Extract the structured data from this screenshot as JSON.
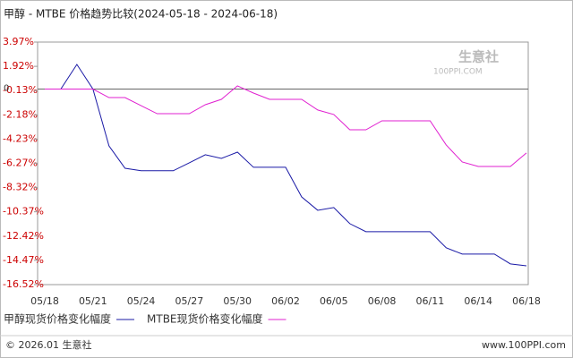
{
  "chart_data": {
    "type": "line",
    "title": "甲醇 - MTBE 价格趋势比较(2024-05-18 - 2024-06-18)",
    "categories": [
      "05/18",
      null,
      null,
      "05/21",
      null,
      null,
      "05/24",
      null,
      null,
      "05/27",
      null,
      null,
      "05/30",
      null,
      null,
      "06/02",
      null,
      null,
      "06/05",
      null,
      null,
      "06/08",
      null,
      null,
      "06/11",
      null,
      null,
      "06/14",
      null,
      null,
      "06/18"
    ],
    "series": [
      {
        "name": "甲醇现货价格变化幅度",
        "color": "#1a1aa6",
        "values": [
          0,
          0,
          2.08,
          0,
          -4.8,
          -6.69,
          -6.9,
          -6.9,
          -6.9,
          -6.23,
          -5.55,
          -5.86,
          -5.33,
          -6.61,
          -6.61,
          -6.61,
          -9.11,
          -10.24,
          -10.01,
          -11.37,
          -12.05,
          -12.05,
          -12.05,
          -12.05,
          -12.05,
          -13.41,
          -13.94,
          -13.94,
          -13.94,
          -14.77,
          -14.93
        ]
      },
      {
        "name": "MTBE现货价格变化幅度",
        "color": "#e020d0",
        "values": [
          0,
          0,
          0,
          0,
          -0.72,
          -0.72,
          -1.4,
          -2.08,
          -2.08,
          -2.08,
          -1.32,
          -0.87,
          0.27,
          -0.34,
          -0.87,
          -0.87,
          -0.87,
          -1.77,
          -2.15,
          -3.44,
          -3.44,
          -2.68,
          -2.68,
          -2.68,
          -2.68,
          -4.72,
          -6.16,
          -6.54,
          -6.54,
          -6.54,
          -5.4
        ]
      }
    ],
    "ylim": [
      -16.52,
      3.97
    ],
    "yticks": [
      {
        "value": 3.97,
        "label": "3.97%"
      },
      {
        "value": 1.92,
        "label": "1.92%"
      },
      {
        "value": -0.13,
        "label": "-0.13%"
      },
      {
        "value": -2.18,
        "label": "-2.18%"
      },
      {
        "value": -4.23,
        "label": "-4.23%"
      },
      {
        "value": -6.27,
        "label": "-6.27%"
      },
      {
        "value": -8.32,
        "label": "-8.32%"
      },
      {
        "value": -10.37,
        "label": "-10.37%"
      },
      {
        "value": -12.42,
        "label": "-12.42%"
      },
      {
        "value": -14.47,
        "label": "-14.47%"
      },
      {
        "value": -16.52,
        "label": "-16.52%"
      }
    ],
    "zero_line": {
      "value": 0,
      "label": "0"
    },
    "watermark": {
      "name": "生意社",
      "site": "100PPI.COM"
    },
    "footer": {
      "left": "© 2026.01 生意社",
      "right": "www.100PPI.com"
    }
  }
}
